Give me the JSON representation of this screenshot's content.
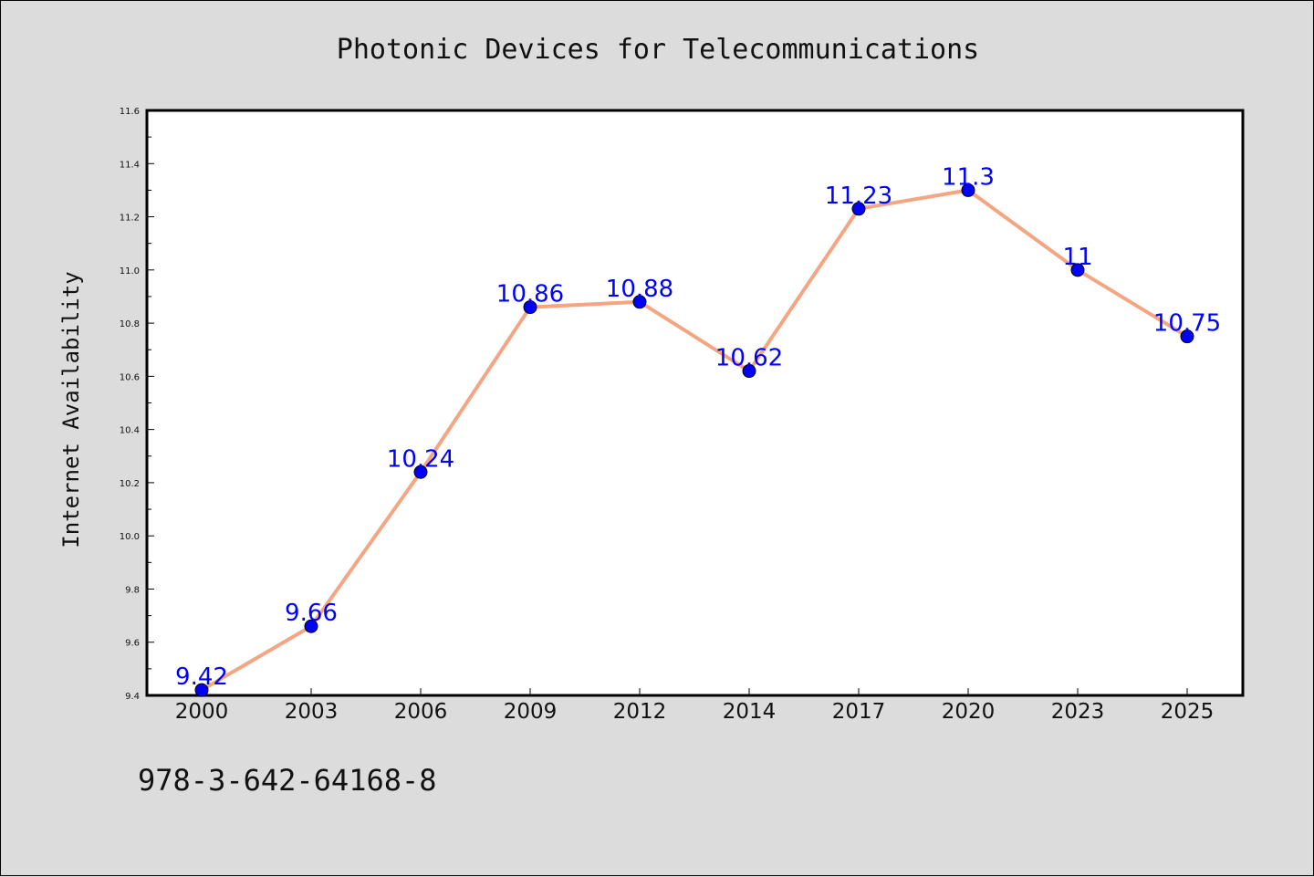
{
  "chart_data": {
    "type": "line",
    "title": "Photonic Devices for Telecommunications",
    "xlabel": "",
    "ylabel": "Internet Availability",
    "categories": [
      "2000",
      "2003",
      "2006",
      "2009",
      "2012",
      "2014",
      "2017",
      "2020",
      "2023",
      "2025"
    ],
    "series": [
      {
        "values": [
          9.42,
          9.66,
          10.24,
          10.86,
          10.88,
          10.62,
          11.23,
          11.3,
          11.0,
          10.75
        ]
      }
    ],
    "data_labels": [
      "9.42",
      "9.66",
      "10.24",
      "10.86",
      "10.88",
      "10.62",
      "11.23",
      "11.3",
      "11",
      "10.75"
    ],
    "ylim": [
      9.4,
      11.6
    ],
    "yticks": [
      "9.4",
      "9.6",
      "9.8",
      "10.0",
      "10.2",
      "10.4",
      "10.6",
      "10.8",
      "11.0",
      "11.2",
      "11.4",
      "11.6"
    ],
    "grid": false,
    "line_color": "#f4a582",
    "marker_color": "#0000ff",
    "label_color": "#0000ff"
  },
  "footer_text": "978-3-642-64168-8"
}
